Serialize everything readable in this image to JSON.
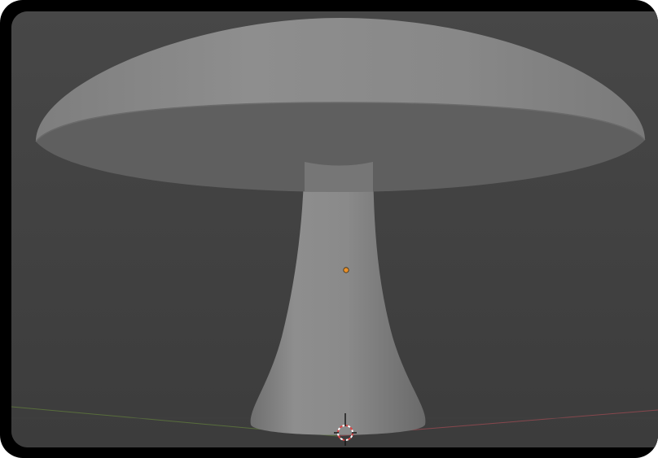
{
  "viewport": {
    "background_color": "#3d3d3d",
    "view_color": "#454545",
    "model_color": "#8a8a8a",
    "origin_color": "#e8902a",
    "cursor_colors": [
      "#d94545",
      "#ffffff"
    ],
    "axis_x_color": "#9a4a52",
    "axis_y_color": "#5f7a3c"
  },
  "icons": {
    "object_origin": "origin-dot-icon",
    "cursor_3d": "3d-cursor-icon"
  }
}
